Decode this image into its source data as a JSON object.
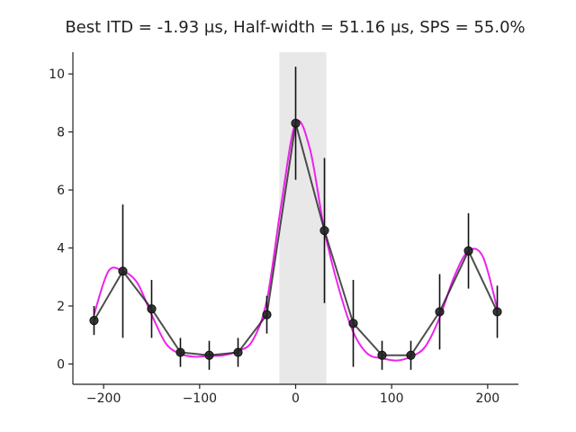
{
  "chart_data": {
    "type": "line",
    "title": "Best ITD = -1.93 μs, Half-width = 51.16 μs, SPS = 55.0%",
    "xlabel": "",
    "ylabel": "",
    "xlim": [
      -232,
      232
    ],
    "ylim": [
      -0.7,
      10.75
    ],
    "xticks": [
      -200,
      -100,
      0,
      100,
      200
    ],
    "xtick_labels": [
      "−200",
      "−100",
      "0",
      "100",
      "200"
    ],
    "yticks": [
      0,
      2,
      4,
      6,
      8,
      10
    ],
    "ytick_labels": [
      "0",
      "2",
      "4",
      "6",
      "8",
      "10"
    ],
    "grid": false,
    "highlight_band": {
      "x0": -17,
      "x1": 32,
      "color": "#e8e8e8"
    },
    "series": [
      {
        "kind": "data",
        "color": "#444444",
        "x": [
          -210,
          -180,
          -150,
          -120,
          -90,
          -60,
          -30,
          0,
          30,
          60,
          90,
          120,
          150,
          180,
          210
        ],
        "y": [
          1.5,
          3.2,
          1.9,
          0.4,
          0.3,
          0.4,
          1.7,
          8.3,
          4.6,
          1.4,
          0.3,
          0.3,
          1.8,
          3.9,
          1.8
        ],
        "err": [
          0.5,
          2.3,
          1.0,
          0.5,
          0.5,
          0.5,
          0.65,
          1.95,
          2.5,
          1.5,
          0.5,
          0.5,
          1.3,
          1.3,
          0.9
        ]
      },
      {
        "kind": "fit",
        "color": "#ee22ee",
        "x": [
          -210,
          -195,
          -180,
          -165,
          -150,
          -135,
          -120,
          -105,
          -90,
          -75,
          -60,
          -45,
          -30,
          -15,
          0,
          15,
          30,
          45,
          60,
          75,
          90,
          105,
          120,
          135,
          150,
          165,
          180,
          195,
          210
        ],
        "y": [
          1.7,
          3.2,
          3.2,
          2.8,
          1.7,
          0.7,
          0.35,
          0.25,
          0.28,
          0.3,
          0.45,
          0.8,
          2.2,
          5.5,
          8.3,
          7.4,
          4.6,
          2.6,
          1.1,
          0.35,
          0.2,
          0.12,
          0.25,
          0.6,
          1.6,
          3.0,
          3.9,
          3.7,
          1.9
        ]
      }
    ]
  }
}
